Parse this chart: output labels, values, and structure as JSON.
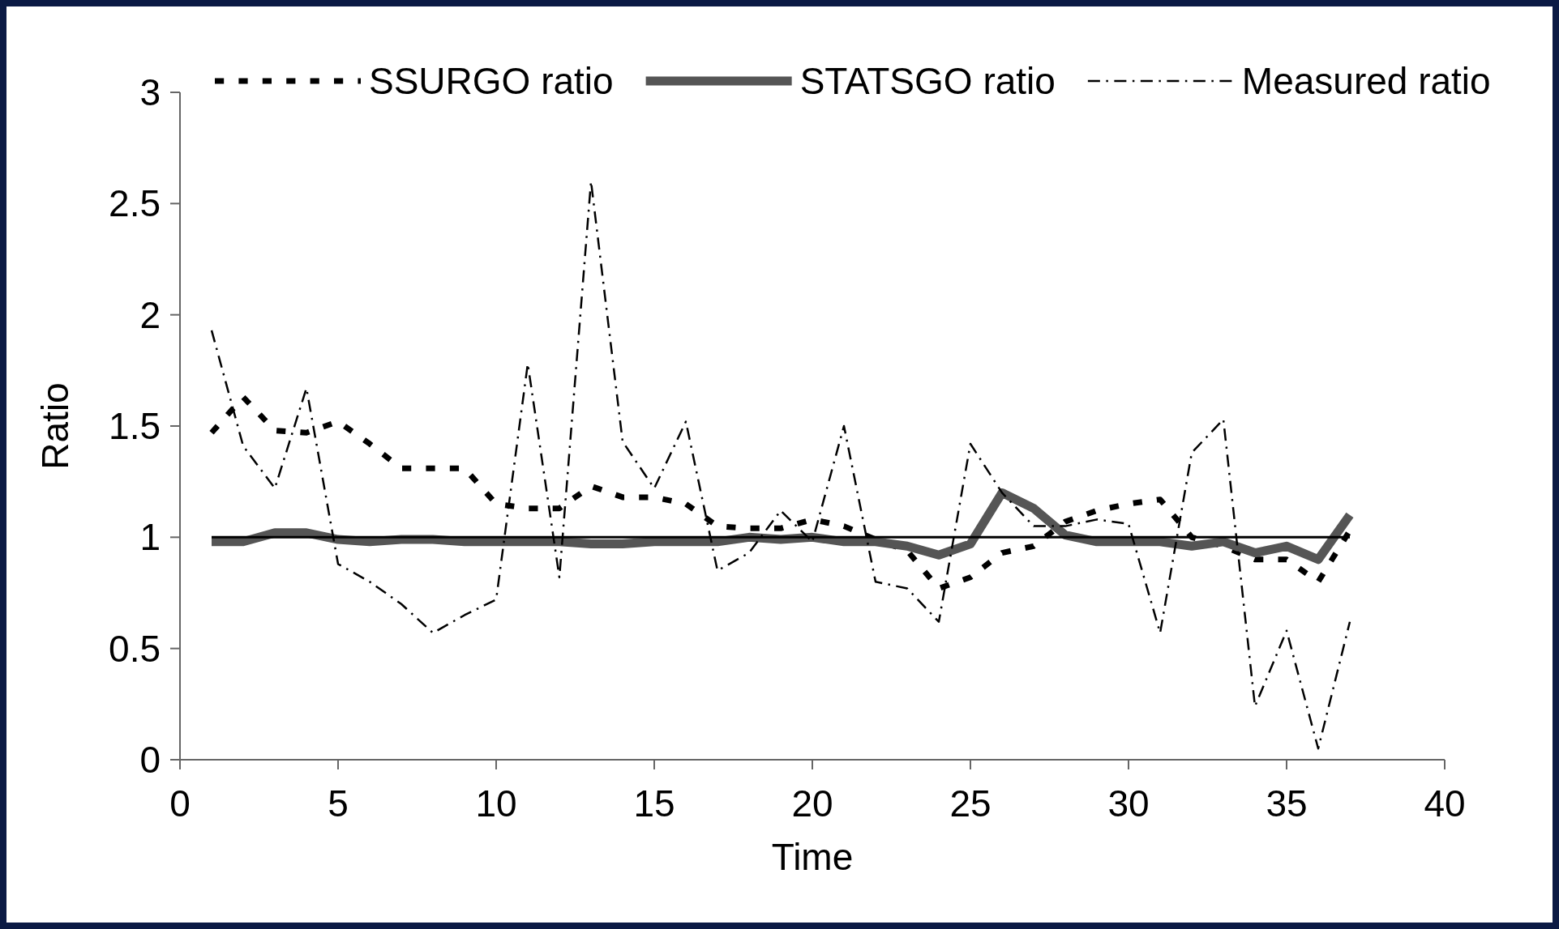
{
  "chart_data": {
    "type": "line",
    "xlabel": "Time",
    "ylabel": "Ratio",
    "x": [
      1,
      2,
      3,
      4,
      5,
      6,
      7,
      8,
      9,
      10,
      11,
      12,
      13,
      14,
      15,
      16,
      17,
      18,
      19,
      20,
      21,
      22,
      23,
      24,
      25,
      26,
      27,
      28,
      29,
      30,
      31,
      32,
      33,
      34,
      35,
      36,
      37
    ],
    "series": [
      {
        "name": "SSURGO ratio",
        "color": "#000000",
        "line_style": "dotted",
        "values": [
          1.47,
          1.63,
          1.48,
          1.47,
          1.52,
          1.42,
          1.31,
          1.31,
          1.31,
          1.15,
          1.13,
          1.13,
          1.23,
          1.18,
          1.18,
          1.15,
          1.05,
          1.04,
          1.04,
          1.08,
          1.05,
          0.99,
          0.94,
          0.77,
          0.82,
          0.93,
          0.96,
          1.07,
          1.12,
          1.15,
          1.17,
          1.0,
          0.96,
          0.9,
          0.9,
          0.8,
          1.03
        ]
      },
      {
        "name": "STATSGO ratio",
        "color": "#555555",
        "line_style": "solid",
        "values": [
          0.98,
          0.98,
          1.02,
          1.02,
          0.99,
          0.98,
          0.99,
          0.99,
          0.98,
          0.98,
          0.98,
          0.98,
          0.97,
          0.97,
          0.98,
          0.98,
          0.98,
          1.0,
          0.99,
          1.0,
          0.98,
          0.98,
          0.96,
          0.92,
          0.97,
          1.2,
          1.13,
          1.01,
          0.98,
          0.98,
          0.98,
          0.96,
          0.98,
          0.93,
          0.96,
          0.9,
          1.1
        ]
      },
      {
        "name": "Measured ratio",
        "color": "#000000",
        "line_style": "dashed",
        "values": [
          1.93,
          1.41,
          1.22,
          1.67,
          0.88,
          0.8,
          0.7,
          0.57,
          0.65,
          0.72,
          1.78,
          0.82,
          2.6,
          1.43,
          1.22,
          1.52,
          0.85,
          0.93,
          1.12,
          0.98,
          1.5,
          0.8,
          0.77,
          0.62,
          1.42,
          1.2,
          1.05,
          1.05,
          1.08,
          1.06,
          0.57,
          1.38,
          1.53,
          0.24,
          0.58,
          0.05,
          0.62
        ]
      },
      {
        "color": "#000000",
        "line_style": "solid",
        "x": [
          1,
          37
        ],
        "values": [
          1,
          1
        ]
      }
    ],
    "xlim": [
      0,
      40
    ],
    "xticks": [
      0,
      5,
      10,
      15,
      20,
      25,
      30,
      35,
      40
    ],
    "ylim": [
      0,
      3
    ],
    "yticks": [
      0,
      0.5,
      1,
      1.5,
      2,
      2.5,
      3
    ],
    "grid": false,
    "legend": "top"
  }
}
